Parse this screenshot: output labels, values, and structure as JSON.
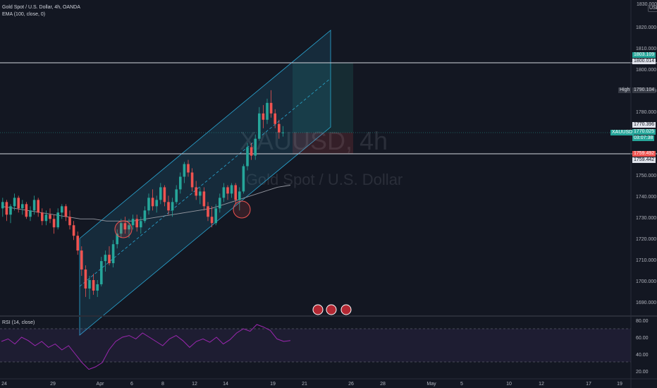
{
  "symbol": {
    "title": "Gold Spot / U.S. Dollar, 4h, OANDA",
    "indicator": "EMA (100, close, 0)",
    "watermark_line1": "XAUUSD, 4h",
    "watermark_line2": "Gold Spot / U.S. Dollar",
    "currency": "USD"
  },
  "rsi": {
    "label": "RSI (14, close)",
    "ticks": [
      "80.00",
      "60.00",
      "40.00",
      "20.00"
    ]
  },
  "price_axis": {
    "ticks": [
      "1820.000",
      "1810.000",
      "1800.000",
      "1790.000",
      "1780.000",
      "1750.000",
      "1740.000",
      "1730.000",
      "1720.000",
      "1710.000",
      "1700.000",
      "1690.000"
    ],
    "top_partial": "1830.000"
  },
  "tags": {
    "resistance_a": "1803.109",
    "resistance_b": "1800.014",
    "high_label": "High",
    "high_value": "1790.104",
    "last_a": "1770.396",
    "symbol_short": "XAUUSD",
    "last_price": "1770.025",
    "countdown": "03:07:38",
    "support_a": "1759.492",
    "support_b": "1759.442"
  },
  "time_axis": {
    "labels": [
      "24",
      "29",
      "Apr",
      "6",
      "8",
      "12",
      "14",
      "19",
      "21",
      "26",
      "28",
      "May",
      "5",
      "10",
      "12",
      "17",
      "19"
    ]
  },
  "colors": {
    "bg": "#131722",
    "up": "#26a69a",
    "down": "#ef5350",
    "channel": "#2aa9d6",
    "rsi": "#9c27b0",
    "ema": "#9598a1"
  },
  "chart_data": {
    "type": "candlestick",
    "ohlc": [
      [
        1734,
        1739,
        1730,
        1737
      ],
      [
        1737,
        1738,
        1728,
        1731
      ],
      [
        1731,
        1736,
        1727,
        1735
      ],
      [
        1735,
        1741,
        1733,
        1739
      ],
      [
        1739,
        1740,
        1732,
        1734
      ],
      [
        1734,
        1738,
        1731,
        1736
      ],
      [
        1736,
        1737,
        1729,
        1730
      ],
      [
        1730,
        1735,
        1728,
        1733
      ],
      [
        1733,
        1740,
        1731,
        1738
      ],
      [
        1738,
        1739,
        1730,
        1732
      ],
      [
        1732,
        1734,
        1726,
        1728
      ],
      [
        1728,
        1733,
        1726,
        1731
      ],
      [
        1731,
        1734,
        1727,
        1729
      ],
      [
        1729,
        1731,
        1722,
        1725
      ],
      [
        1725,
        1734,
        1724,
        1732
      ],
      [
        1732,
        1736,
        1729,
        1735
      ],
      [
        1735,
        1736,
        1728,
        1730
      ],
      [
        1730,
        1733,
        1724,
        1726
      ],
      [
        1726,
        1728,
        1719,
        1721
      ],
      [
        1721,
        1723,
        1712,
        1714
      ],
      [
        1714,
        1716,
        1702,
        1705
      ],
      [
        1705,
        1707,
        1692,
        1696
      ],
      [
        1696,
        1702,
        1691,
        1700
      ],
      [
        1700,
        1703,
        1693,
        1695
      ],
      [
        1695,
        1700,
        1692,
        1698
      ],
      [
        1698,
        1711,
        1697,
        1709
      ],
      [
        1709,
        1714,
        1704,
        1712
      ],
      [
        1712,
        1716,
        1707,
        1708
      ],
      [
        1708,
        1719,
        1706,
        1717
      ],
      [
        1717,
        1724,
        1715,
        1722
      ],
      [
        1722,
        1729,
        1720,
        1727
      ],
      [
        1727,
        1730,
        1722,
        1724
      ],
      [
        1724,
        1729,
        1720,
        1726
      ],
      [
        1726,
        1731,
        1724,
        1729
      ],
      [
        1729,
        1731,
        1723,
        1725
      ],
      [
        1725,
        1730,
        1722,
        1728
      ],
      [
        1728,
        1735,
        1727,
        1733
      ],
      [
        1733,
        1741,
        1731,
        1739
      ],
      [
        1739,
        1743,
        1733,
        1735
      ],
      [
        1735,
        1740,
        1732,
        1738
      ],
      [
        1738,
        1746,
        1736,
        1744
      ],
      [
        1744,
        1745,
        1735,
        1737
      ],
      [
        1737,
        1740,
        1731,
        1733
      ],
      [
        1733,
        1739,
        1730,
        1737
      ],
      [
        1737,
        1745,
        1736,
        1743
      ],
      [
        1743,
        1751,
        1741,
        1749
      ],
      [
        1749,
        1756,
        1746,
        1755
      ],
      [
        1755,
        1757,
        1749,
        1751
      ],
      [
        1751,
        1753,
        1742,
        1744
      ],
      [
        1744,
        1747,
        1738,
        1740
      ],
      [
        1740,
        1744,
        1736,
        1742
      ],
      [
        1742,
        1744,
        1733,
        1735
      ],
      [
        1735,
        1737,
        1728,
        1730
      ],
      [
        1730,
        1735,
        1725,
        1727
      ],
      [
        1727,
        1736,
        1726,
        1734
      ],
      [
        1734,
        1741,
        1732,
        1739
      ],
      [
        1739,
        1746,
        1737,
        1744
      ],
      [
        1744,
        1745,
        1738,
        1741
      ],
      [
        1741,
        1746,
        1739,
        1745
      ],
      [
        1745,
        1746,
        1736,
        1738
      ],
      [
        1738,
        1744,
        1733,
        1742
      ],
      [
        1742,
        1755,
        1741,
        1754
      ],
      [
        1754,
        1765,
        1752,
        1763
      ],
      [
        1763,
        1765,
        1757,
        1759
      ],
      [
        1759,
        1769,
        1757,
        1767
      ],
      [
        1767,
        1782,
        1766,
        1779
      ],
      [
        1779,
        1783,
        1772,
        1776
      ],
      [
        1776,
        1786,
        1774,
        1784
      ],
      [
        1784,
        1790,
        1777,
        1779
      ],
      [
        1779,
        1781,
        1772,
        1774
      ],
      [
        1774,
        1776,
        1767,
        1770
      ],
      [
        1770,
        1773,
        1768,
        1770
      ]
    ],
    "ema100": [
      1735,
      1734,
      1733,
      1732,
      1731,
      1730,
      1729,
      1729,
      1728,
      1728,
      1728,
      1729,
      1730,
      1731,
      1732,
      1733,
      1734,
      1736,
      1738,
      1740,
      1742,
      1744,
      1745
    ],
    "rsi": [
      55,
      58,
      52,
      60,
      56,
      50,
      55,
      48,
      52,
      45,
      50,
      40,
      30,
      22,
      25,
      30,
      45,
      55,
      60,
      62,
      58,
      65,
      60,
      55,
      50,
      58,
      62,
      56,
      48,
      55,
      58,
      54,
      60,
      52,
      57,
      65,
      70,
      67,
      75,
      72,
      68,
      58,
      55,
      56
    ],
    "lines": {
      "resistance": 1803.1,
      "support": 1759.5,
      "last": 1770.0
    }
  }
}
